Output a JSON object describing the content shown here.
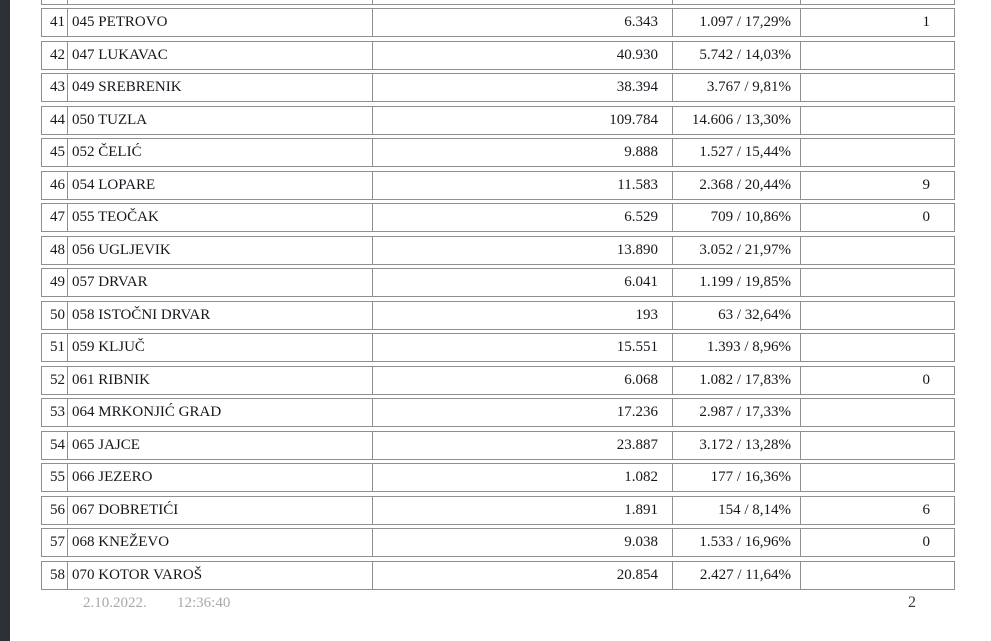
{
  "footer": {
    "date": "2.10.2022.",
    "time": "12:36:40",
    "page_number": "2"
  },
  "colors": {
    "table_border": "#8f8f8f",
    "text": "#16161d",
    "footer_text": "#a9a9a9",
    "viewer_edge": "#2d3135",
    "page_background": "#ffffff"
  },
  "table": {
    "rows": [
      {
        "no": "41",
        "municipality": "045 PETROVO",
        "total": "6.343",
        "value_pct": "1.097 / 17,29%",
        "extra": "1"
      },
      {
        "no": "42",
        "municipality": "047 LUKAVAC",
        "total": "40.930",
        "value_pct": "5.742 / 14,03%",
        "extra": ""
      },
      {
        "no": "43",
        "municipality": "049 SREBRENIK",
        "total": "38.394",
        "value_pct": "3.767 / 9,81%",
        "extra": ""
      },
      {
        "no": "44",
        "municipality": "050 TUZLA",
        "total": "109.784",
        "value_pct": "14.606 / 13,30%",
        "extra": ""
      },
      {
        "no": "45",
        "municipality": "052 ČELIĆ",
        "total": "9.888",
        "value_pct": "1.527 / 15,44%",
        "extra": ""
      },
      {
        "no": "46",
        "municipality": "054 LOPARE",
        "total": "11.583",
        "value_pct": "2.368 / 20,44%",
        "extra": "9"
      },
      {
        "no": "47",
        "municipality": "055 TEOČAK",
        "total": "6.529",
        "value_pct": "709 / 10,86%",
        "extra": "0"
      },
      {
        "no": "48",
        "municipality": "056 UGLJEVIK",
        "total": "13.890",
        "value_pct": "3.052 / 21,97%",
        "extra": ""
      },
      {
        "no": "49",
        "municipality": "057 DRVAR",
        "total": "6.041",
        "value_pct": "1.199 / 19,85%",
        "extra": ""
      },
      {
        "no": "50",
        "municipality": "058 ISTOČNI DRVAR",
        "total": "193",
        "value_pct": "63 / 32,64%",
        "extra": ""
      },
      {
        "no": "51",
        "municipality": "059 KLJUČ",
        "total": "15.551",
        "value_pct": "1.393 / 8,96%",
        "extra": ""
      },
      {
        "no": "52",
        "municipality": "061 RIBNIK",
        "total": "6.068",
        "value_pct": "1.082 / 17,83%",
        "extra": "0"
      },
      {
        "no": "53",
        "municipality": "064 MRKONJIĆ GRAD",
        "total": "17.236",
        "value_pct": "2.987 / 17,33%",
        "extra": ""
      },
      {
        "no": "54",
        "municipality": "065 JAJCE",
        "total": "23.887",
        "value_pct": "3.172 / 13,28%",
        "extra": ""
      },
      {
        "no": "55",
        "municipality": "066 JEZERO",
        "total": "1.082",
        "value_pct": "177 / 16,36%",
        "extra": ""
      },
      {
        "no": "56",
        "municipality": "067 DOBRETIĆI",
        "total": "1.891",
        "value_pct": "154 / 8,14%",
        "extra": "6"
      },
      {
        "no": "57",
        "municipality": "068 KNEŽEVO",
        "total": "9.038",
        "value_pct": "1.533 / 16,96%",
        "extra": "0"
      },
      {
        "no": "58",
        "municipality": "070 KOTOR VAROŠ",
        "total": "20.854",
        "value_pct": "2.427 / 11,64%",
        "extra": ""
      }
    ]
  }
}
